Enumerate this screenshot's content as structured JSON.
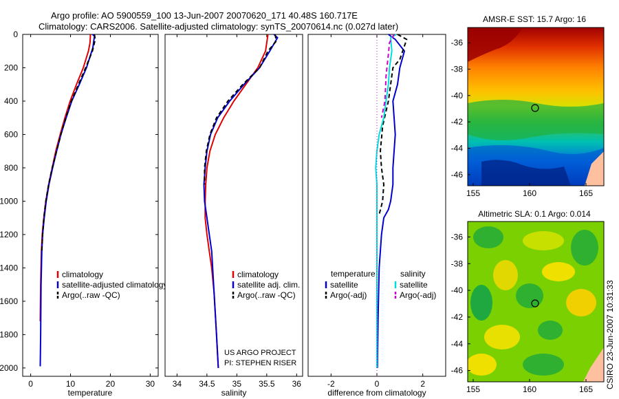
{
  "title": {
    "line1": "Argo profile: AO 5900559_100 13-Jun-2007 20070620_171 40.48S 160.717E",
    "line2": "Climatology: CARS2006. Satellite-adjusted climatology: synTS_20070614.nc (0.027d later)"
  },
  "credit": {
    "project": "US ARGO PROJECT",
    "pi": "PI: STEPHEN RISER",
    "stamp": "CSIRO 23-Jun-2007 10:31:33"
  },
  "colors": {
    "climatology": "#e00000",
    "satellite": "#0000cc",
    "argo": "#000000",
    "sat_salinity": "#00dddd",
    "argo_salinity": "#cc00cc"
  },
  "chart_data": [
    {
      "type": "line",
      "id": "temperature",
      "xlabel": "temperature",
      "ylabel": "",
      "xlim": [
        -2,
        32
      ],
      "ylim": [
        2050,
        0
      ],
      "xticks": [
        0,
        10,
        20,
        30
      ],
      "yticks": [
        0,
        200,
        400,
        600,
        800,
        1000,
        1200,
        1400,
        1600,
        1800,
        2000
      ],
      "legend": [
        "climatology",
        "satellite-adjusted climatology",
        "Argo(..raw -QC)"
      ],
      "series": [
        {
          "name": "climatology",
          "color": "#e00000",
          "dash": "",
          "x": [
            15.0,
            14.9,
            14.5,
            13.2,
            11.5,
            9.9,
            8.6,
            7.4,
            6.3,
            5.4,
            4.5,
            3.8,
            3.3,
            2.9,
            2.7,
            2.5,
            2.4
          ],
          "y": [
            0,
            50,
            100,
            200,
            300,
            400,
            500,
            600,
            700,
            800,
            900,
            1000,
            1100,
            1200,
            1300,
            1500,
            1720
          ]
        },
        {
          "name": "satellite",
          "color": "#0000cc",
          "dash": "",
          "x": [
            15.5,
            16.0,
            15.6,
            14.0,
            12.2,
            10.3,
            8.9,
            7.6,
            6.5,
            5.5,
            4.6,
            3.9,
            3.4,
            3.0,
            2.8,
            2.6,
            2.5,
            2.4
          ],
          "y": [
            0,
            10,
            80,
            200,
            300,
            400,
            500,
            600,
            700,
            800,
            900,
            1000,
            1100,
            1200,
            1300,
            1500,
            1800,
            1990
          ]
        },
        {
          "name": "Argo",
          "color": "#000000",
          "dash": "6,4",
          "x": [
            16.0,
            16.2,
            15.5,
            13.8,
            12.0,
            10.2,
            8.8,
            7.6,
            6.5,
            5.4,
            4.5,
            3.8,
            3.3,
            3.0,
            2.8
          ],
          "y": [
            0,
            30,
            100,
            200,
            300,
            400,
            500,
            600,
            700,
            800,
            900,
            1000,
            1100,
            1200,
            1300
          ]
        }
      ]
    },
    {
      "type": "line",
      "id": "salinity",
      "xlabel": "salinity",
      "ylabel": "",
      "xlim": [
        33.8,
        36.1
      ],
      "ylim": [
        2050,
        0
      ],
      "xticks": [
        34,
        34.5,
        35,
        35.5,
        36
      ],
      "legend": [
        "climatology",
        "satellite adj. clim.",
        "Argo(..raw -QC)"
      ],
      "series": [
        {
          "name": "climatology",
          "color": "#e00000",
          "dash": "",
          "x": [
            35.52,
            35.48,
            35.35,
            35.15,
            34.95,
            34.78,
            34.64,
            34.55,
            34.5,
            34.48,
            34.47,
            34.47,
            34.5,
            34.54,
            34.58,
            34.62,
            34.66,
            34.69
          ],
          "y": [
            0,
            100,
            200,
            300,
            400,
            500,
            600,
            700,
            800,
            900,
            1000,
            1100,
            1200,
            1300,
            1400,
            1550,
            1800,
            2000
          ]
        },
        {
          "name": "satellite",
          "color": "#0000cc",
          "dash": "",
          "x": [
            35.62,
            35.68,
            35.55,
            35.38,
            35.12,
            34.88,
            34.68,
            34.56,
            34.5,
            34.47,
            34.45,
            34.46,
            34.5,
            34.54,
            34.58,
            34.62,
            34.66,
            34.69
          ],
          "y": [
            0,
            20,
            100,
            200,
            300,
            400,
            500,
            600,
            700,
            800,
            900,
            1000,
            1100,
            1200,
            1300,
            1550,
            1800,
            2000
          ]
        },
        {
          "name": "Argo",
          "color": "#000000",
          "dash": "6,4",
          "x": [
            35.64,
            35.66,
            35.52,
            35.38,
            35.1,
            34.85,
            34.66,
            34.55,
            34.49,
            34.46,
            34.46
          ],
          "y": [
            0,
            40,
            100,
            200,
            300,
            400,
            500,
            600,
            700,
            800,
            900
          ]
        }
      ]
    },
    {
      "type": "line",
      "id": "difference",
      "xlabel": "difference from climatology",
      "ylabel": "",
      "xlim": [
        -3,
        3
      ],
      "ylim": [
        2050,
        0
      ],
      "xticks": [
        -2,
        0,
        2
      ],
      "legend_left_title": "temperature",
      "legend_right_title": "salinity",
      "legend": [
        "satellite",
        "Argo(-adj)",
        "satellite",
        "Argo(-adj)"
      ],
      "series": [
        {
          "name": "temperature satellite",
          "color": "#0000cc",
          "dash": "",
          "x": [
            0.5,
            0.8,
            1.2,
            1.0,
            0.9,
            0.7,
            0.75,
            0.8,
            0.75,
            0.7,
            0.7,
            0.6,
            0.5,
            0.3,
            0.2,
            0.1,
            0.05,
            0.02
          ],
          "y": [
            0,
            30,
            100,
            200,
            300,
            400,
            500,
            600,
            700,
            800,
            900,
            1000,
            1050,
            1100,
            1200,
            1400,
            1700,
            2000
          ]
        },
        {
          "name": "temperature Argo",
          "color": "#000000",
          "dash": "6,4",
          "x": [
            0.9,
            1.3,
            1.0,
            0.7,
            0.6,
            0.5,
            0.25,
            0.15,
            0.2,
            0.3,
            0.25,
            0.1
          ],
          "y": [
            0,
            30,
            150,
            200,
            300,
            400,
            550,
            700,
            800,
            900,
            1000,
            1080
          ]
        },
        {
          "name": "salinity satellite",
          "color": "#00dddd",
          "dash": "",
          "x": [
            0.85,
            0.6,
            0.65,
            0.55,
            0.5,
            0.4,
            0.3,
            0.1,
            0.0,
            -0.05,
            0.0,
            0.0,
            0.0
          ],
          "y": [
            0,
            20,
            100,
            200,
            300,
            400,
            500,
            600,
            700,
            800,
            900,
            1200,
            2000
          ]
        },
        {
          "name": "salinity Argo",
          "color": "#cc00cc",
          "dash": "6,4",
          "x": [
            0.75,
            0.55,
            0.5,
            0.4,
            0.35,
            0.2
          ],
          "y": [
            0,
            50,
            120,
            250,
            400,
            500
          ]
        },
        {
          "name": "zero",
          "color": "#cc00cc",
          "dash": "1,3",
          "x": [
            0,
            0
          ],
          "y": [
            0,
            2050
          ]
        }
      ]
    }
  ],
  "maps": [
    {
      "id": "sst",
      "title": "AMSR-E SST: 15.7 Argo: 16",
      "yticks": [
        "-36",
        "-38",
        "-40",
        "-42",
        "-44",
        "-46"
      ],
      "xticks": [
        "155",
        "160",
        "165"
      ]
    },
    {
      "id": "sla",
      "title": "Altimetric SLA: 0.1 Argo: 0.014",
      "yticks": [
        "-36",
        "-38",
        "-40",
        "-42",
        "-44",
        "-46"
      ],
      "xticks": [
        "155",
        "160",
        "165"
      ]
    }
  ]
}
